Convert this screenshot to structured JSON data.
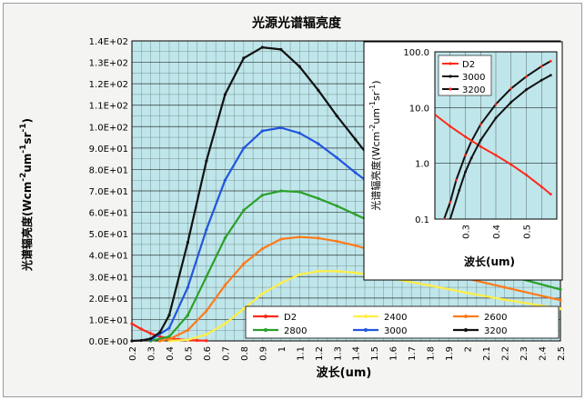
{
  "chart_data": [
    {
      "type": "line",
      "title": "光源光谱辐亮度",
      "xlabel": "波长(um)",
      "ylabel": "光谱辐亮度(Wcm^-2um^-1sr^-1)",
      "ylabel_parts": {
        "pre": "光谱辐亮度(Wcm",
        "s1": "-2",
        "mid1": "um",
        "s2": "-1",
        "mid2": "sr",
        "s3": "-1",
        "post": ")"
      },
      "xlim": [
        0.2,
        2.5
      ],
      "ylim": [
        0,
        140
      ],
      "x_ticks": [
        0.2,
        0.3,
        0.4,
        0.5,
        0.6,
        0.7,
        0.8,
        0.9,
        1,
        1.1,
        1.2,
        1.3,
        1.4,
        1.5,
        1.6,
        1.7,
        1.8,
        1.9,
        2,
        2.1,
        2.2,
        2.3,
        2.4,
        2.5
      ],
      "x_tick_labels": [
        "0.2",
        "0.3",
        "0.4",
        "0.5",
        "0.6",
        "0.7",
        "0.8",
        "0.9",
        "1",
        "1.1",
        "1.2",
        "1.3",
        "1.4",
        "1.5",
        "1.6",
        "1.7",
        "1.8",
        "1.9",
        "2",
        "2.1",
        "2.2",
        "2.3",
        "2.4",
        "2.5"
      ],
      "y_ticks": [
        0,
        10,
        20,
        30,
        40,
        50,
        60,
        70,
        80,
        90,
        100,
        110,
        120,
        130,
        140
      ],
      "y_tick_labels": [
        "0.0E+00",
        "1.0E+01",
        "2.0E+01",
        "3.0E+01",
        "4.0E+01",
        "5.0E+01",
        "6.0E+01",
        "7.0E+01",
        "8.0E+01",
        "9.0E+01",
        "1.0E+02",
        "1.1E+02",
        "1.2E+02",
        "1.3E+02",
        "1.4E+02"
      ],
      "grid": true,
      "legend_placement": "bottom-center",
      "series": [
        {
          "name": "D2",
          "color": "#ff2a1a",
          "x": [
            0.2,
            0.25,
            0.3,
            0.35,
            0.4,
            0.45,
            0.5,
            0.55,
            0.6
          ],
          "y": [
            8,
            5.5,
            3.5,
            2,
            1.2,
            0.7,
            0.4,
            0.2,
            0.1
          ]
        },
        {
          "name": "2400",
          "color": "#ffee44",
          "x": [
            0.4,
            0.5,
            0.6,
            0.7,
            0.8,
            0.9,
            1.0,
            1.1,
            1.2,
            1.3,
            1.4,
            1.5,
            1.6,
            1.8,
            2.0,
            2.2,
            2.5
          ],
          "y": [
            0,
            0.5,
            3,
            8,
            15,
            22,
            27,
            31,
            32.5,
            32.5,
            31.8,
            30.5,
            29,
            25.8,
            22.4,
            19.2,
            15
          ]
        },
        {
          "name": "2600",
          "color": "#ff7a1a",
          "x": [
            0.35,
            0.4,
            0.5,
            0.6,
            0.7,
            0.8,
            0.9,
            1.0,
            1.1,
            1.2,
            1.3,
            1.4,
            1.5,
            1.6,
            1.8,
            2.0,
            2.2,
            2.5
          ],
          "y": [
            0,
            0.8,
            5,
            14,
            26,
            36,
            43,
            47.5,
            48.5,
            48,
            46.5,
            44.5,
            42,
            39,
            34,
            29,
            25,
            19
          ]
        },
        {
          "name": "2800",
          "color": "#2aa02a",
          "x": [
            0.3,
            0.4,
            0.5,
            0.6,
            0.7,
            0.8,
            0.9,
            1.0,
            1.1,
            1.2,
            1.3,
            1.4,
            1.5,
            1.6,
            1.8,
            2.0,
            2.2,
            2.5
          ],
          "y": [
            0,
            2,
            12,
            30,
            48,
            61,
            68,
            70,
            69.5,
            66.5,
            63,
            59,
            55,
            50.5,
            43,
            36,
            31,
            24
          ]
        },
        {
          "name": "3000",
          "color": "#2255dd",
          "x": [
            0.3,
            0.4,
            0.5,
            0.6,
            0.7,
            0.8,
            0.9,
            1.0,
            1.1,
            1.2,
            1.3,
            1.4,
            1.5,
            1.6,
            1.8,
            2.0,
            2.2,
            2.5
          ],
          "y": [
            0.5,
            6,
            25,
            52,
            75,
            90,
            98,
            99.5,
            97,
            92,
            85.5,
            78.5,
            72,
            66,
            55,
            46,
            38,
            30
          ]
        },
        {
          "name": "3200",
          "color": "#111111",
          "x": [
            0.2,
            0.25,
            0.3,
            0.35,
            0.4,
            0.5,
            0.6,
            0.7,
            0.8,
            0.9,
            1.0,
            1.1,
            1.2,
            1.3,
            1.4,
            1.5,
            1.6,
            1.8,
            2.0,
            2.2,
            2.5
          ],
          "y": [
            0,
            0.2,
            1,
            4,
            12,
            46,
            84,
            115,
            132,
            137,
            136,
            128,
            117,
            105,
            94,
            83,
            75,
            61,
            50,
            41,
            32
          ]
        }
      ]
    },
    {
      "type": "line",
      "title": "",
      "xlabel": "波长(um)",
      "ylabel": "光谱辐亮度(Wcm^-2um^-1sr^-1)",
      "ylabel_parts": {
        "pre": "光谱辐亮度(Wcm",
        "s1": "-2",
        "mid1": "um",
        "s2": "-1",
        "mid2": "sr",
        "s3": "-1",
        "post": ")"
      },
      "xlim": [
        0.2,
        0.6
      ],
      "ylim": [
        0.1,
        100
      ],
      "yscale": "log",
      "x_ticks": [
        0.3,
        0.4,
        0.5
      ],
      "x_tick_labels": [
        "0.3",
        "0.4",
        "0.5"
      ],
      "y_ticks": [
        0.1,
        1,
        10,
        100
      ],
      "y_tick_labels": [
        "0.1",
        "1.0",
        "10.0",
        "100.0"
      ],
      "grid": true,
      "legend_placement": "top-left",
      "series": [
        {
          "name": "D2",
          "color": "#ff2a1a",
          "x": [
            0.2,
            0.25,
            0.3,
            0.35,
            0.4,
            0.45,
            0.5,
            0.55,
            0.58
          ],
          "y": [
            7.5,
            4.6,
            3.0,
            2.0,
            1.4,
            0.95,
            0.62,
            0.38,
            0.28
          ]
        },
        {
          "name": "3000",
          "color": "#111111",
          "x": [
            0.25,
            0.28,
            0.3,
            0.32,
            0.35,
            0.4,
            0.45,
            0.5,
            0.55,
            0.58
          ],
          "y": [
            0.1,
            0.33,
            0.7,
            1.25,
            2.6,
            6.5,
            12.5,
            21,
            31,
            38
          ]
        },
        {
          "name": "3200",
          "color": "#111111",
          "x": [
            0.23,
            0.25,
            0.27,
            0.3,
            0.32,
            0.35,
            0.4,
            0.45,
            0.5,
            0.55,
            0.58
          ],
          "y": [
            0.1,
            0.2,
            0.5,
            1.4,
            2.5,
            5.0,
            11.5,
            22,
            36,
            55,
            68
          ]
        }
      ]
    }
  ]
}
